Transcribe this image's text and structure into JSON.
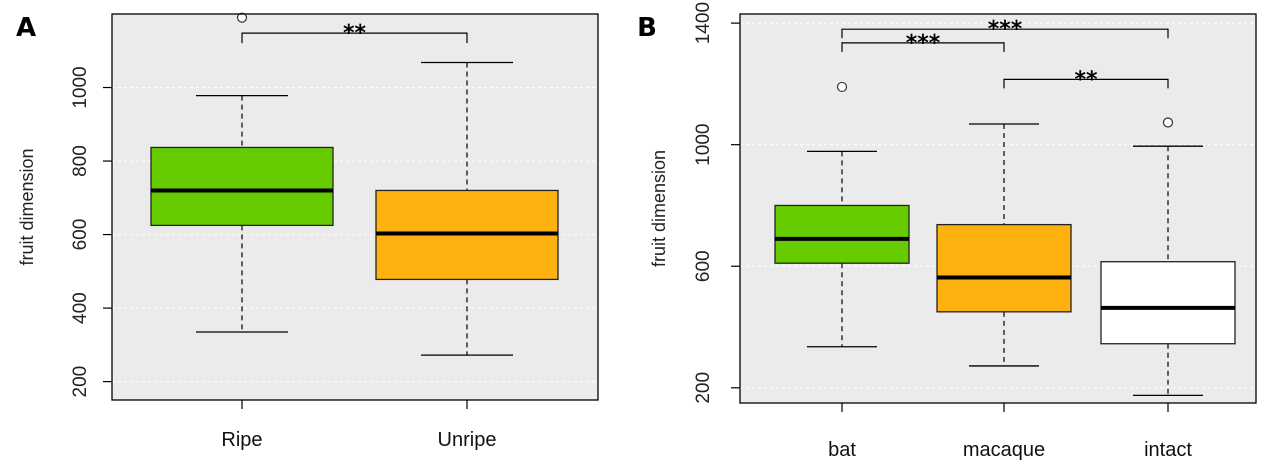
{
  "chart_data": [
    {
      "panel": "A",
      "type": "box",
      "categories": [
        "Ripe",
        "Unripe"
      ],
      "ylabel": "fruit dimension",
      "yticks": [
        200,
        400,
        600,
        800,
        1000
      ],
      "ylim": [
        150,
        1200
      ],
      "grid": true,
      "boxes": [
        {
          "category": "Ripe",
          "min": 335,
          "q1": 625,
          "median": 720,
          "q3": 837,
          "max": 978,
          "outliers": [
            1190
          ],
          "color": "#66cc00"
        },
        {
          "category": "Unripe",
          "min": 272,
          "q1": 478,
          "median": 603,
          "q3": 720,
          "max": 1068,
          "outliers": [],
          "color": "#ffb20f"
        }
      ],
      "significance": [
        {
          "from": "Ripe",
          "to": "Unripe",
          "label": "**",
          "level": 1148
        }
      ]
    },
    {
      "panel": "B",
      "type": "box",
      "categories": [
        "bat",
        "macaque",
        "intact"
      ],
      "ylabel": "fruit dimension",
      "yticks": [
        200,
        600,
        1000,
        1400
      ],
      "ylim": [
        150,
        1430
      ],
      "grid": true,
      "boxes": [
        {
          "category": "bat",
          "min": 335,
          "q1": 610,
          "median": 690,
          "q3": 800,
          "max": 978,
          "outliers": [
            1190
          ],
          "color": "#66cc00"
        },
        {
          "category": "macaque",
          "min": 272,
          "q1": 450,
          "median": 563,
          "q3": 737,
          "max": 1068,
          "outliers": [],
          "color": "#ffb20f"
        },
        {
          "category": "intact",
          "min": 175,
          "q1": 345,
          "median": 463,
          "q3": 615,
          "max": 995,
          "outliers": [
            1073
          ],
          "color": "#ffffff"
        }
      ],
      "significance": [
        {
          "from": "bat",
          "to": "intact",
          "label": "***",
          "level": 1380
        },
        {
          "from": "bat",
          "to": "macaque",
          "label": "***",
          "level": 1335
        },
        {
          "from": "macaque",
          "to": "intact",
          "label": "**",
          "level": 1215
        }
      ]
    }
  ]
}
